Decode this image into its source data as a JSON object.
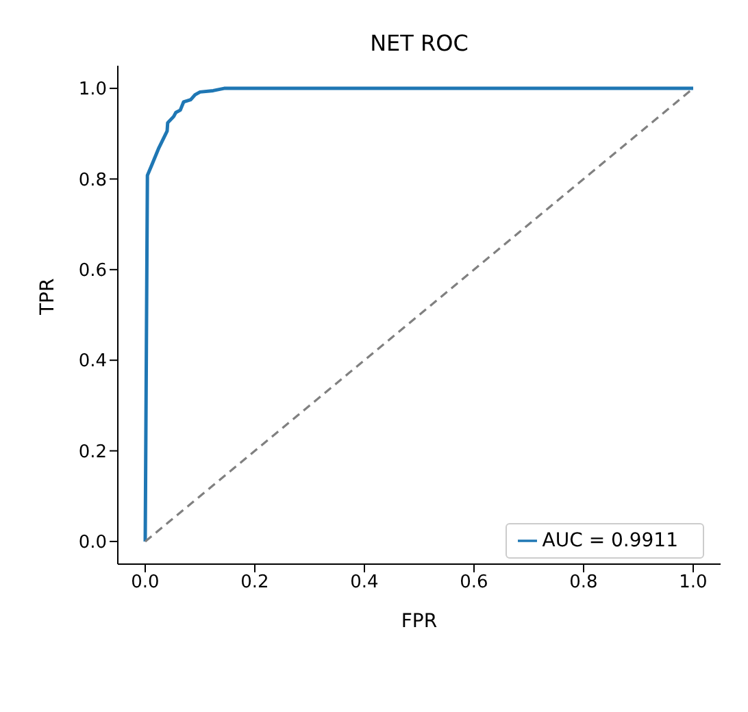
{
  "chart_data": {
    "type": "line",
    "title": "NET ROC",
    "xlabel": "FPR",
    "ylabel": "TPR",
    "xlim": [
      -0.05,
      1.05
    ],
    "ylim": [
      -0.05,
      1.05
    ],
    "xticks": [
      {
        "value": 0,
        "label": "0.0"
      },
      {
        "value": 0.2,
        "label": "0.2"
      },
      {
        "value": 0.4,
        "label": "0.4"
      },
      {
        "value": 0.6,
        "label": "0.6"
      },
      {
        "value": 0.8,
        "label": "0.8"
      },
      {
        "value": 1,
        "label": "1.0"
      }
    ],
    "yticks": [
      {
        "value": 0,
        "label": "0.0"
      },
      {
        "value": 0.2,
        "label": "0.2"
      },
      {
        "value": 0.4,
        "label": "0.4"
      },
      {
        "value": 0.6,
        "label": "0.6"
      },
      {
        "value": 0.8,
        "label": "0.8"
      },
      {
        "value": 1,
        "label": "1.0"
      }
    ],
    "grid": false,
    "legend": "bottom right",
    "marker": "none",
    "series": [
      {
        "name": "AUC = 0.9911",
        "color": "#1f77b4",
        "line_style": "solid",
        "x": [
          0,
          0.004,
          0.012,
          0.025,
          0.04,
          0.041,
          0.052,
          0.056,
          0.064,
          0.07,
          0.083,
          0.091,
          0.1,
          0.124,
          0.144,
          1
        ],
        "values": [
          0,
          0.808,
          0.831,
          0.869,
          0.906,
          0.924,
          0.938,
          0.947,
          0.952,
          0.97,
          0.975,
          0.986,
          0.992,
          0.995,
          1,
          1
        ]
      },
      {
        "color": "#808080",
        "line_style": "dashed",
        "x": [
          0,
          1
        ],
        "values": [
          0,
          1
        ]
      }
    ]
  }
}
